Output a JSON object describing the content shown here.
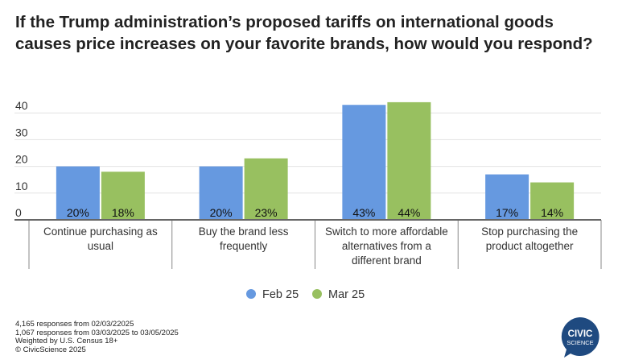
{
  "chart_data": {
    "type": "bar",
    "title": "If the Trump administration’s proposed tariffs on international goods causes price increases on your favorite brands, how would you respond?",
    "categories": [
      "Continue purchasing as usual",
      "Buy the brand less frequently",
      "Switch to more affordable alternatives from a different brand",
      "Stop purchasing the product altogether"
    ],
    "category_lines": [
      [
        "Continue purchasing as",
        "usual"
      ],
      [
        "Buy the brand less",
        "frequently"
      ],
      [
        "Switch to more affordable",
        "alternatives from a",
        "different brand"
      ],
      [
        "Stop purchasing the",
        "product altogether"
      ]
    ],
    "series": [
      {
        "name": "Feb 25",
        "values": [
          20,
          20,
          43,
          17
        ],
        "labels": [
          "20%",
          "20%",
          "43%",
          "17%"
        ],
        "color": "#6699e0"
      },
      {
        "name": "Mar 25",
        "values": [
          18,
          23,
          44,
          14
        ],
        "labels": [
          "18%",
          "23%",
          "44%",
          "14%"
        ],
        "color": "#98c060"
      }
    ],
    "yticks": [
      "0",
      "10",
      "20",
      "30",
      "40"
    ],
    "ylim": [
      0,
      45
    ],
    "grid": true,
    "legend": "bottom-center",
    "xlabel": "",
    "ylabel": ""
  },
  "footer": {
    "lines": [
      "4,165 responses from 02/03/22025",
      "1,067 responses from 03/03/2025 to 03/05/2025",
      "Weighted by U.S. Census 18+",
      "© CivicScience 2025"
    ]
  },
  "logo": {
    "line1": "CIVIC",
    "line2": "SCIENCE",
    "color": "#1f4a80"
  }
}
